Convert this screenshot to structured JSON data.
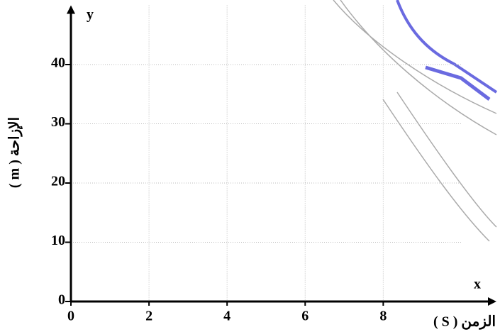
{
  "chart_data": {
    "type": "line",
    "x_label": "x",
    "y_label": "y",
    "x_title": "الزمن ( S )",
    "y_title": "الإزاحة ( m )",
    "xlim": [
      0,
      10.9
    ],
    "ylim": [
      0,
      50
    ],
    "xticks": [
      0,
      2,
      4,
      6,
      8
    ],
    "yticks": [
      0,
      10,
      20,
      30,
      40
    ],
    "grid": true,
    "series": []
  }
}
